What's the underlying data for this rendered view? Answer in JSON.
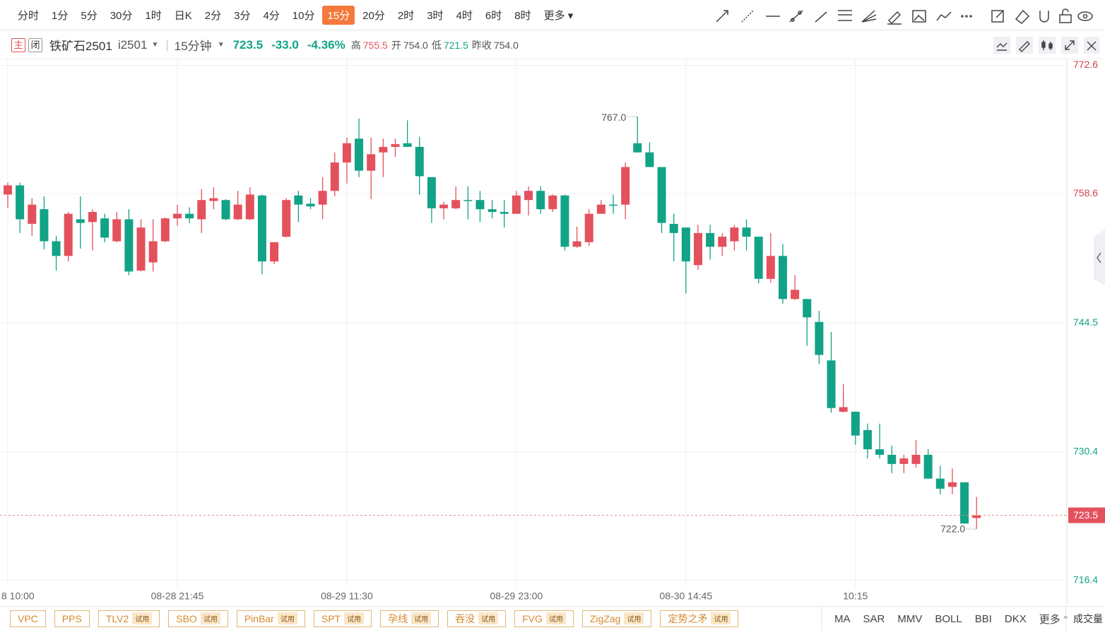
{
  "toolbar": {
    "periods": [
      "分时",
      "1分",
      "5分",
      "30分",
      "1时",
      "日K",
      "2分",
      "3分",
      "4分",
      "10分",
      "15分",
      "20分",
      "2时",
      "3时",
      "4时",
      "6时",
      "8时",
      "更多"
    ],
    "active_index": 10
  },
  "header": {
    "main_tag": "主",
    "closed_tag": "闭",
    "name": "铁矿石2501",
    "code": "i2501",
    "period": "15分钟",
    "last": "723.5",
    "change": "-33.0",
    "change_pct": "-4.36%",
    "high_label": "高",
    "high": "755.5",
    "open_label": "开",
    "open": "754.0",
    "low_label": "低",
    "low": "721.5",
    "prev_close_label": "昨收",
    "prev_close": "754.0"
  },
  "chart_data": {
    "type": "candlestick",
    "categories": [
      "8 10:00",
      null,
      null,
      null,
      null,
      null,
      null,
      null,
      null,
      null,
      null,
      null,
      null,
      null,
      "08-28 21:45",
      null,
      null,
      null,
      null,
      null,
      null,
      null,
      null,
      null,
      null,
      null,
      null,
      null,
      "08-29 11:30",
      null,
      null,
      null,
      null,
      null,
      null,
      null,
      null,
      null,
      null,
      null,
      null,
      null,
      "08-29 23:00",
      null,
      null,
      null,
      null,
      null,
      null,
      null,
      null,
      null,
      null,
      null,
      null,
      null,
      "08-30 14:45",
      null,
      null,
      null,
      null,
      null,
      null,
      null,
      null,
      null,
      null,
      null,
      null,
      null,
      "10:15",
      null,
      null,
      null,
      null,
      null,
      null,
      null,
      null,
      null,
      null
    ],
    "open": [
      758.5,
      759.5,
      755.3,
      756.9,
      753.4,
      751.8,
      755.8,
      755.5,
      755.9,
      753.4,
      755.8,
      750.2,
      751.1,
      753.4,
      755.9,
      756.4,
      755.8,
      757.8,
      757.9,
      755.8,
      755.8,
      758.4,
      751.2,
      753.9,
      758.4,
      757.5,
      757.4,
      758.9,
      762.0,
      764.6,
      761.1,
      763.1,
      763.7,
      764.1,
      763.7,
      760.4,
      757.0,
      757.0,
      757.9,
      757.9,
      756.9,
      756.6,
      756.4,
      757.9,
      758.9,
      756.9,
      758.4,
      752.8,
      753.3,
      756.4,
      757.4,
      757.4,
      764.1,
      763.1,
      761.5,
      755.3,
      754.9,
      750.8,
      754.3,
      752.8,
      753.4,
      754.9,
      753.9,
      749.3,
      751.8,
      747.1,
      747.1,
      744.6,
      740.4,
      734.8,
      734.8,
      732.8,
      730.7,
      730.1,
      729.1,
      729.1,
      730.1,
      727.5,
      726.6,
      727.1,
      723.2
    ],
    "high": [
      759.8,
      759.8,
      758.1,
      758.3,
      754.0,
      756.6,
      758.3,
      756.9,
      756.4,
      756.6,
      756.9,
      755.8,
      755.8,
      756.0,
      757.4,
      757.1,
      759.1,
      759.3,
      758.0,
      758.9,
      759.3,
      758.5,
      753.3,
      758.1,
      758.9,
      758.1,
      760.4,
      763.1,
      764.7,
      766.8,
      764.7,
      764.6,
      764.6,
      766.6,
      764.8,
      760.4,
      757.7,
      759.4,
      759.4,
      758.9,
      757.9,
      757.9,
      758.9,
      759.4,
      759.4,
      758.5,
      758.5,
      755.0,
      756.9,
      757.9,
      758.5,
      762.0,
      767.0,
      764.2,
      761.5,
      756.4,
      754.9,
      755.2,
      755.2,
      754.3,
      755.2,
      755.8,
      753.9,
      754.3,
      753.1,
      749.7,
      747.1,
      745.8,
      743.5,
      737.8,
      734.8,
      733.5,
      733.5,
      731.1,
      730.1,
      731.7,
      730.7,
      728.9,
      728.6,
      727.1,
      725.5
    ],
    "low": [
      757.0,
      754.3,
      754.0,
      752.5,
      750.2,
      751.2,
      752.6,
      752.4,
      753.3,
      753.3,
      749.7,
      750.1,
      750.1,
      753.3,
      755.1,
      755.4,
      754.3,
      756.9,
      755.7,
      755.7,
      755.7,
      749.8,
      750.9,
      753.8,
      755.5,
      756.9,
      755.8,
      758.3,
      759.7,
      760.4,
      758.0,
      760.4,
      762.6,
      763.7,
      758.5,
      755.4,
      755.8,
      756.9,
      755.8,
      755.5,
      755.9,
      754.9,
      756.4,
      756.2,
      756.4,
      756.6,
      752.4,
      752.7,
      752.9,
      756.4,
      756.4,
      755.8,
      763.1,
      761.5,
      754.3,
      751.2,
      747.7,
      750.3,
      751.4,
      751.8,
      752.4,
      752.4,
      748.8,
      748.9,
      746.6,
      747.0,
      742.0,
      740.0,
      734.7,
      734.7,
      731.2,
      729.7,
      729.7,
      728.1,
      728.1,
      728.7,
      727.5,
      725.8,
      725.8,
      722.6,
      722.0
    ],
    "close": [
      759.5,
      755.8,
      757.4,
      753.4,
      751.8,
      756.4,
      755.4,
      756.6,
      753.8,
      755.8,
      750.1,
      754.9,
      753.4,
      755.9,
      756.4,
      755.9,
      757.9,
      758.1,
      755.8,
      757.4,
      758.5,
      751.2,
      753.3,
      757.9,
      757.4,
      757.2,
      758.9,
      762.0,
      764.1,
      761.1,
      762.9,
      763.7,
      764.0,
      763.7,
      760.5,
      757.0,
      757.4,
      757.9,
      757.8,
      756.9,
      756.6,
      756.4,
      758.4,
      758.9,
      756.9,
      758.4,
      752.8,
      753.4,
      756.4,
      757.4,
      757.3,
      761.5,
      763.1,
      761.5,
      755.4,
      754.3,
      751.2,
      754.3,
      752.8,
      753.9,
      754.9,
      753.9,
      749.3,
      751.8,
      747.1,
      748.1,
      745.1,
      741.0,
      735.2,
      735.3,
      732.2,
      730.7,
      730.1,
      729.1,
      729.7,
      730.1,
      727.5,
      726.4,
      727.1,
      722.6,
      723.5
    ],
    "up_color": "#e3515d",
    "down_color": "#12a387",
    "ylim": [
      715.6,
      773.1
    ],
    "yticks": [
      716.4,
      730.4,
      744.5,
      758.6,
      772.6
    ],
    "grid": true,
    "max_label": {
      "value": 767.0,
      "label": "767.0"
    },
    "min_label": {
      "value": 722.0,
      "label": "722.0"
    },
    "last_price": {
      "value": 723.5,
      "label": "723.5"
    }
  },
  "indicators": [
    {
      "name": "VPC"
    },
    {
      "name": "PPS"
    },
    {
      "name": "TLV2",
      "badge": "试用"
    },
    {
      "name": "SBO",
      "badge": "试用"
    },
    {
      "name": "PinBar",
      "badge": "试用"
    },
    {
      "name": "SPT",
      "badge": "试用"
    },
    {
      "name": "孕线",
      "badge": "试用"
    },
    {
      "name": "吞没",
      "badge": "试用"
    },
    {
      "name": "FVG",
      "badge": "试用"
    },
    {
      "name": "ZigZag",
      "badge": "试用"
    },
    {
      "name": "定势之矛",
      "badge": "试用"
    }
  ],
  "main_indicators": [
    "MA",
    "SAR",
    "MMV",
    "BOLL",
    "BBI",
    "DKX"
  ],
  "more": "更多",
  "volume_tab": "成交量"
}
